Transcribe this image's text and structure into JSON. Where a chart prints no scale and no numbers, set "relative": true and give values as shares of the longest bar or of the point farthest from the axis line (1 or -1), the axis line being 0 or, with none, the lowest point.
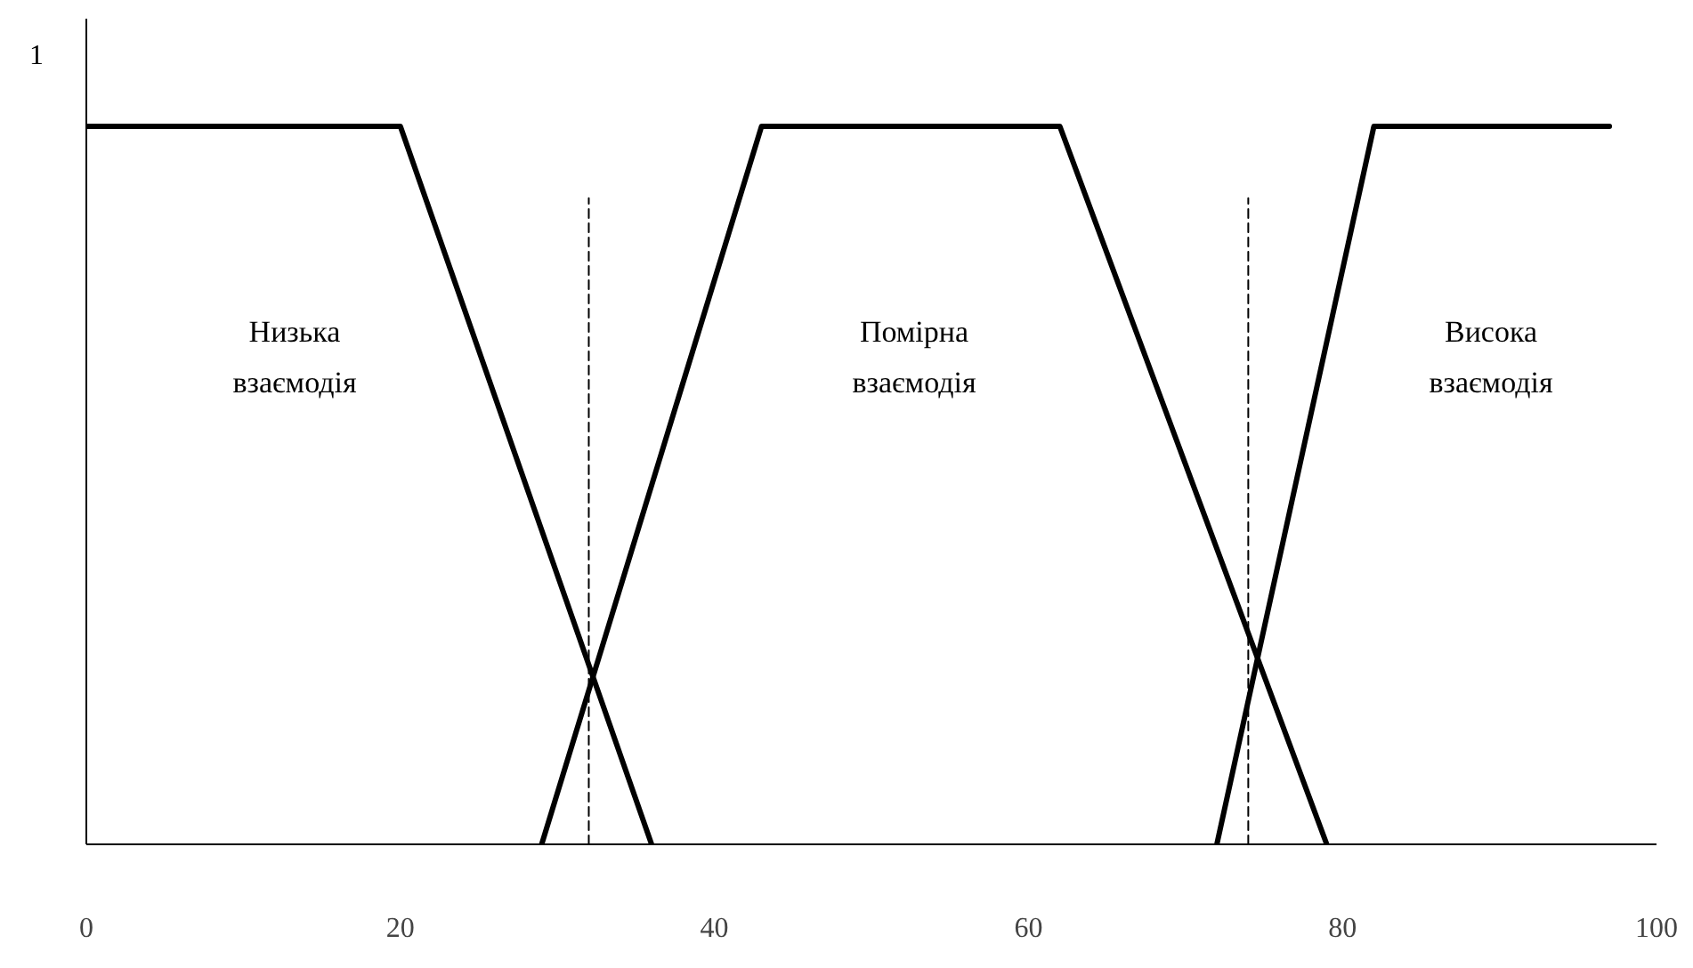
{
  "chart_data": {
    "type": "line",
    "relative": true,
    "xlim": [
      0,
      100
    ],
    "xticks": [
      0,
      20,
      40,
      60,
      80,
      100
    ],
    "tick_labels": "x",
    "grid": false,
    "marker": "none",
    "line_style": "solid",
    "series": [
      {
        "color": "#000000",
        "x": [
          0,
          20,
          36
        ],
        "values": [
          1,
          1,
          0
        ]
      },
      {
        "color": "#000000",
        "x": [
          29,
          43,
          62,
          79
        ],
        "values": [
          0,
          1,
          1,
          0
        ]
      },
      {
        "color": "#000000",
        "x": [
          72,
          82,
          97
        ],
        "values": [
          0,
          1,
          1
        ]
      },
      {
        "color": "#000000",
        "x": [
          32,
          32
        ],
        "values": [
          0,
          0.9
        ],
        "line_style": "dashed"
      },
      {
        "color": "#000000",
        "x": [
          74,
          74
        ],
        "values": [
          0,
          0.9
        ],
        "line_style": "dashed"
      }
    ],
    "annotations": [
      "1",
      "Низька\nвзаємодія",
      "Помірна\nвзаємодія",
      "Висока\nвзаємодія"
    ]
  }
}
